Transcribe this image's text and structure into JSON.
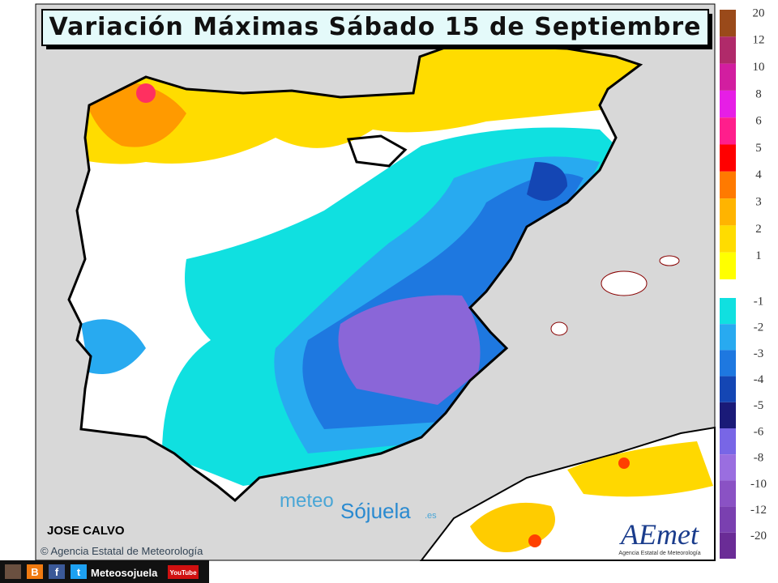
{
  "header": {
    "title": "Variación Máximas Sábado 15 de Septiembre"
  },
  "legend": {
    "warm": [
      {
        "value": 20,
        "color": "#9a4a1a"
      },
      {
        "value": 12,
        "color": "#b02a6a"
      },
      {
        "value": 10,
        "color": "#d21ea0"
      },
      {
        "value": 8,
        "color": "#e61ee6"
      },
      {
        "value": 6,
        "color": "#ff1e8c"
      },
      {
        "value": 5,
        "color": "#ff0000"
      },
      {
        "value": 4,
        "color": "#ff7a00"
      },
      {
        "value": 3,
        "color": "#ffb400"
      },
      {
        "value": 2,
        "color": "#ffdc00"
      },
      {
        "value": 1,
        "color": "#ffff00"
      }
    ],
    "cold": [
      {
        "value": -1,
        "color": "#10e0e0"
      },
      {
        "value": -2,
        "color": "#28aaf0"
      },
      {
        "value": -3,
        "color": "#1e78e0"
      },
      {
        "value": -4,
        "color": "#1446b4"
      },
      {
        "value": -5,
        "color": "#1a1a78"
      },
      {
        "value": -6,
        "color": "#7866e6"
      },
      {
        "value": -8,
        "color": "#9a6ee0"
      },
      {
        "value": -10,
        "color": "#8a52c4"
      },
      {
        "value": -12,
        "color": "#7a40b0"
      },
      {
        "value": -20,
        "color": "#6a2c96"
      }
    ]
  },
  "credits": {
    "author": "JOSE CALVO",
    "agency": "© Agencia Estatal de Meteorología"
  },
  "watermark": {
    "part1": "meteo",
    "part2": "Sójuela",
    "suffix": ".es"
  },
  "logo": {
    "name": "AEmet",
    "subtitle": "Agencia Estatal de Meteorología"
  },
  "footer": {
    "icons": [
      "B",
      "f",
      "t"
    ],
    "site": "Meteosojuela",
    "youtube": "YouTube"
  }
}
